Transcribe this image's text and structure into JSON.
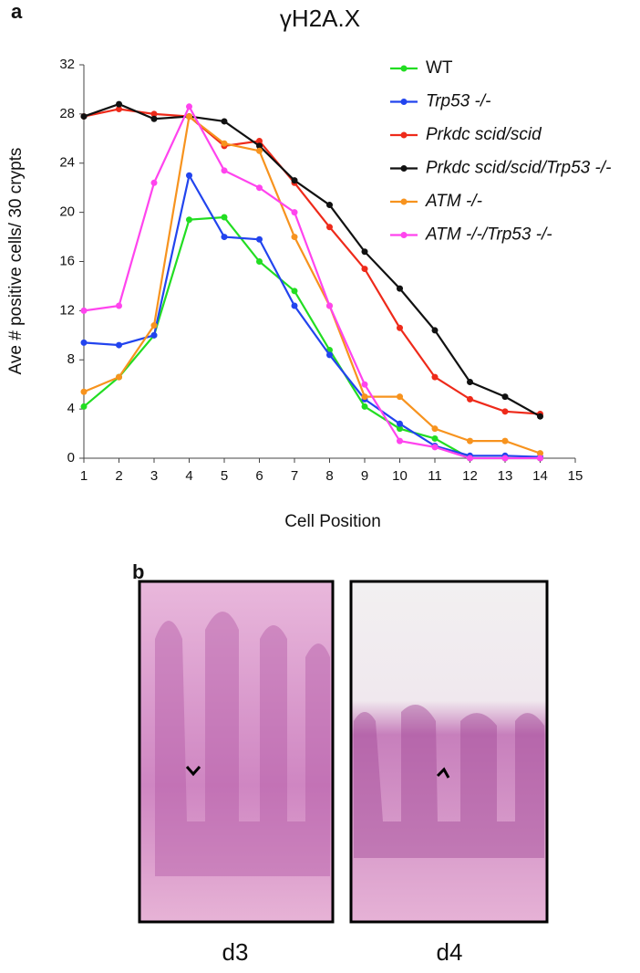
{
  "panel_a_label": "a",
  "panel_b_label": "b",
  "chart_data": {
    "type": "line",
    "title": "γH2A.X",
    "x_label": "Cell Position",
    "y_label": "Ave # positive cells/ 30 crypts",
    "x": [
      1,
      2,
      3,
      4,
      5,
      6,
      7,
      8,
      9,
      10,
      11,
      12,
      13,
      14
    ],
    "xlim": [
      1,
      15
    ],
    "xticks": [
      1,
      2,
      3,
      4,
      5,
      6,
      7,
      8,
      9,
      10,
      11,
      12,
      13,
      14,
      15
    ],
    "ylim": [
      0,
      32
    ],
    "yticks": [
      0,
      4,
      8,
      12,
      16,
      20,
      24,
      28,
      32
    ],
    "legend": "upper right",
    "series": [
      {
        "name": "WT",
        "color": "#22dd22",
        "values": [
          4.2,
          6.6,
          10,
          19.4,
          19.6,
          16,
          13.6,
          8.8,
          4.2,
          2.4,
          1.6,
          0,
          0,
          0
        ]
      },
      {
        "name": "Trp53 -/-",
        "color": "#2244ee",
        "values": [
          9.4,
          9.2,
          10,
          23,
          18,
          17.8,
          12.4,
          8.4,
          4.8,
          2.8,
          1,
          0.2,
          0.2,
          0.1
        ]
      },
      {
        "name": "Prkdc scid/scid",
        "color": "#ee2a1a",
        "values": [
          27.8,
          28.4,
          28,
          27.8,
          25.4,
          25.8,
          22.4,
          18.8,
          15.4,
          10.6,
          6.6,
          4.8,
          3.8,
          3.6
        ]
      },
      {
        "name": "Prkdc scid/scid/Trp53 -/-",
        "color": "#111111",
        "values": [
          27.8,
          28.8,
          27.6,
          27.8,
          27.4,
          25.4,
          22.6,
          20.6,
          16.8,
          13.8,
          10.4,
          6.2,
          5,
          3.4
        ]
      },
      {
        "name": "ATM -/-",
        "color": "#f7931e",
        "values": [
          5.4,
          6.6,
          10.8,
          27.8,
          25.6,
          25,
          18,
          12.4,
          5,
          5,
          2.4,
          1.4,
          1.4,
          0.4
        ]
      },
      {
        "name": "ATM -/-/Trp53 -/-",
        "color": "#ff44ee",
        "values": [
          12,
          12.4,
          22.4,
          28.6,
          23.4,
          22,
          20,
          12.4,
          6,
          1.4,
          0.9,
          0,
          0,
          0
        ]
      }
    ]
  },
  "images": [
    {
      "caption": "d3"
    },
    {
      "caption": "d4"
    }
  ]
}
